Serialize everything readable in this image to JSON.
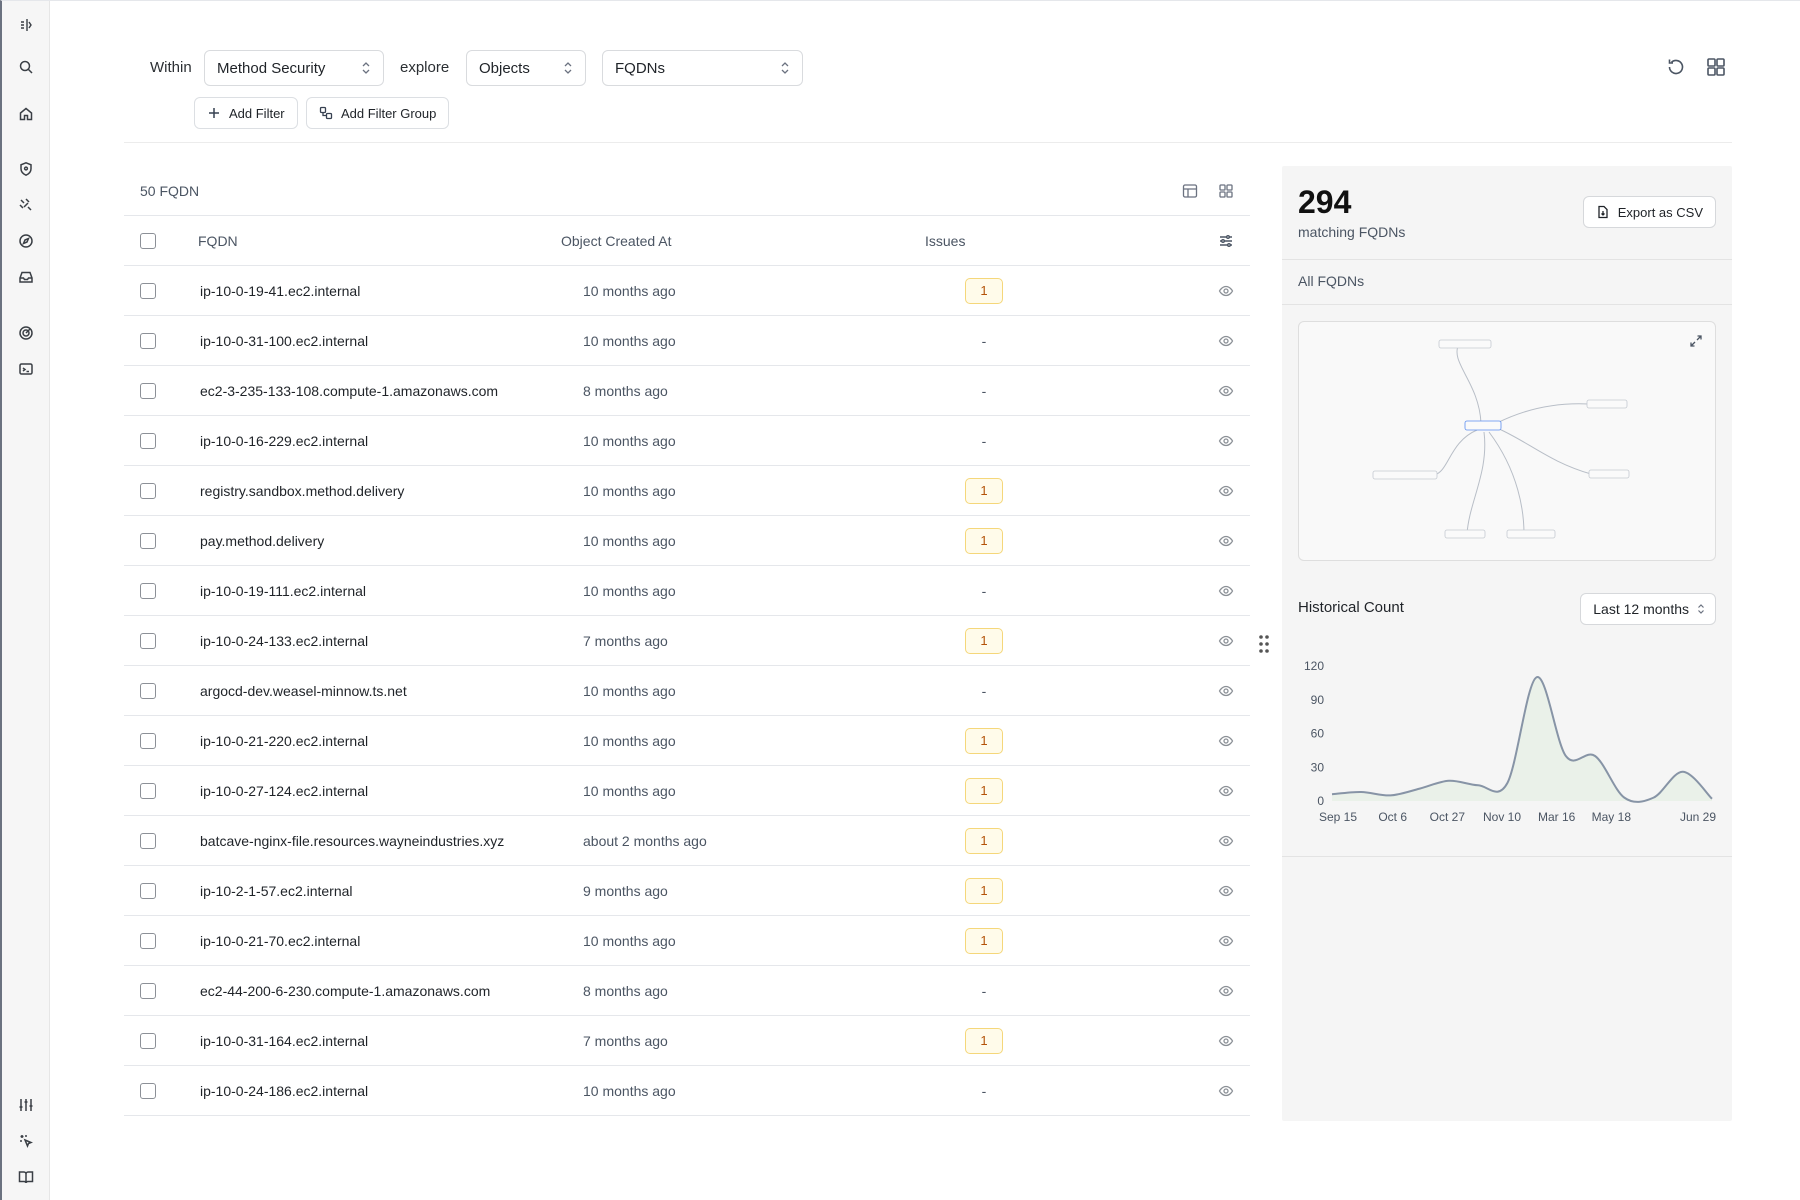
{
  "toolbar": {
    "within_label": "Within",
    "workspace_value": "Method Security",
    "explore_label": "explore",
    "category_value": "Objects",
    "object_type_value": "FQDNs",
    "add_filter_label": "Add Filter",
    "add_filter_group_label": "Add Filter Group"
  },
  "table": {
    "count_label": "50 FQDN",
    "columns": {
      "fqdn": "FQDN",
      "created": "Object Created At",
      "issues": "Issues"
    },
    "rows": [
      {
        "fqdn": "ip-10-0-19-41.ec2.internal",
        "created": "10 months ago",
        "issues": "1"
      },
      {
        "fqdn": "ip-10-0-31-100.ec2.internal",
        "created": "10 months ago",
        "issues": "-"
      },
      {
        "fqdn": "ec2-3-235-133-108.compute-1.amazonaws.com",
        "created": "8 months ago",
        "issues": "-"
      },
      {
        "fqdn": "ip-10-0-16-229.ec2.internal",
        "created": "10 months ago",
        "issues": "-"
      },
      {
        "fqdn": "registry.sandbox.method.delivery",
        "created": "10 months ago",
        "issues": "1"
      },
      {
        "fqdn": "pay.method.delivery",
        "created": "10 months ago",
        "issues": "1"
      },
      {
        "fqdn": "ip-10-0-19-111.ec2.internal",
        "created": "10 months ago",
        "issues": "-"
      },
      {
        "fqdn": "ip-10-0-24-133.ec2.internal",
        "created": "7 months ago",
        "issues": "1"
      },
      {
        "fqdn": "argocd-dev.weasel-minnow.ts.net",
        "created": "10 months ago",
        "issues": "-"
      },
      {
        "fqdn": "ip-10-0-21-220.ec2.internal",
        "created": "10 months ago",
        "issues": "1"
      },
      {
        "fqdn": "ip-10-0-27-124.ec2.internal",
        "created": "10 months ago",
        "issues": "1"
      },
      {
        "fqdn": "batcave-nginx-file.resources.wayneindustries.xyz",
        "created": "about 2 months ago",
        "issues": "1"
      },
      {
        "fqdn": "ip-10-2-1-57.ec2.internal",
        "created": "9 months ago",
        "issues": "1"
      },
      {
        "fqdn": "ip-10-0-21-70.ec2.internal",
        "created": "10 months ago",
        "issues": "1"
      },
      {
        "fqdn": "ec2-44-200-6-230.compute-1.amazonaws.com",
        "created": "8 months ago",
        "issues": "-"
      },
      {
        "fqdn": "ip-10-0-31-164.ec2.internal",
        "created": "7 months ago",
        "issues": "1"
      },
      {
        "fqdn": "ip-10-0-24-186.ec2.internal",
        "created": "10 months ago",
        "issues": "-"
      }
    ]
  },
  "panel": {
    "total_count": "294",
    "total_label": "matching FQDNs",
    "export_label": "Export as CSV",
    "all_label": "All FQDNs",
    "history_title": "Historical Count",
    "range_value": "Last 12 months"
  },
  "colors": {
    "badge_border": "#f5d77a",
    "badge_text": "#b45309",
    "line": "#8794a6",
    "area_fill": "#e6efe4"
  },
  "chart_data": {
    "type": "area",
    "x_labels": [
      "Sep 15",
      "Oct 6",
      "Oct 27",
      "Nov 10",
      "Mar 16",
      "May 18",
      "Jun 29"
    ],
    "y_ticks": [
      0,
      30,
      60,
      90,
      120
    ],
    "ylim": [
      0,
      120
    ],
    "values": [
      6,
      8,
      5,
      11,
      18,
      14,
      16,
      110,
      40,
      40,
      3,
      3,
      26,
      2
    ],
    "grid": false
  }
}
